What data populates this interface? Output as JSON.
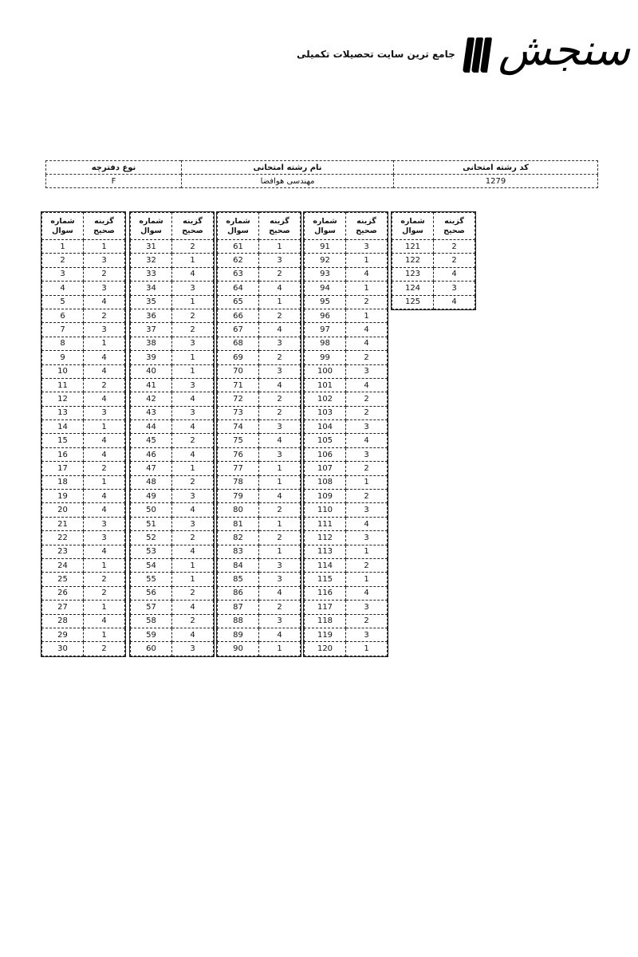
{
  "logo": {
    "word": "سنجش",
    "tagline": "جامع ترین سایت تحصیلات تکمیلی"
  },
  "info": {
    "headers": {
      "booklet_type": "نوع دفترچه",
      "field_name": "نام رشته امتحانی",
      "field_code": "کد رشته امتحانی"
    },
    "values": {
      "booklet_type": "F",
      "field_name": "مهندسی هوافضا",
      "field_code": "1279"
    }
  },
  "answer_key": {
    "col_question": "شماره سوال",
    "col_answer": "گزینه صحیح",
    "answers": [
      1,
      3,
      2,
      3,
      4,
      2,
      3,
      1,
      4,
      4,
      2,
      4,
      3,
      1,
      4,
      4,
      2,
      1,
      4,
      4,
      3,
      3,
      4,
      1,
      2,
      2,
      1,
      4,
      1,
      2,
      2,
      1,
      4,
      3,
      1,
      2,
      2,
      3,
      1,
      1,
      3,
      4,
      3,
      4,
      2,
      4,
      1,
      2,
      3,
      4,
      3,
      2,
      4,
      1,
      1,
      2,
      4,
      2,
      4,
      3,
      1,
      3,
      2,
      4,
      1,
      2,
      4,
      3,
      2,
      3,
      4,
      2,
      2,
      3,
      4,
      3,
      1,
      1,
      4,
      2,
      1,
      2,
      1,
      3,
      3,
      4,
      2,
      3,
      4,
      1,
      3,
      1,
      4,
      1,
      2,
      1,
      4,
      4,
      2,
      3,
      4,
      2,
      2,
      3,
      4,
      3,
      2,
      1,
      2,
      3,
      4,
      3,
      1,
      2,
      1,
      4,
      3,
      2,
      3,
      1,
      2,
      2,
      4,
      3,
      4
    ]
  }
}
